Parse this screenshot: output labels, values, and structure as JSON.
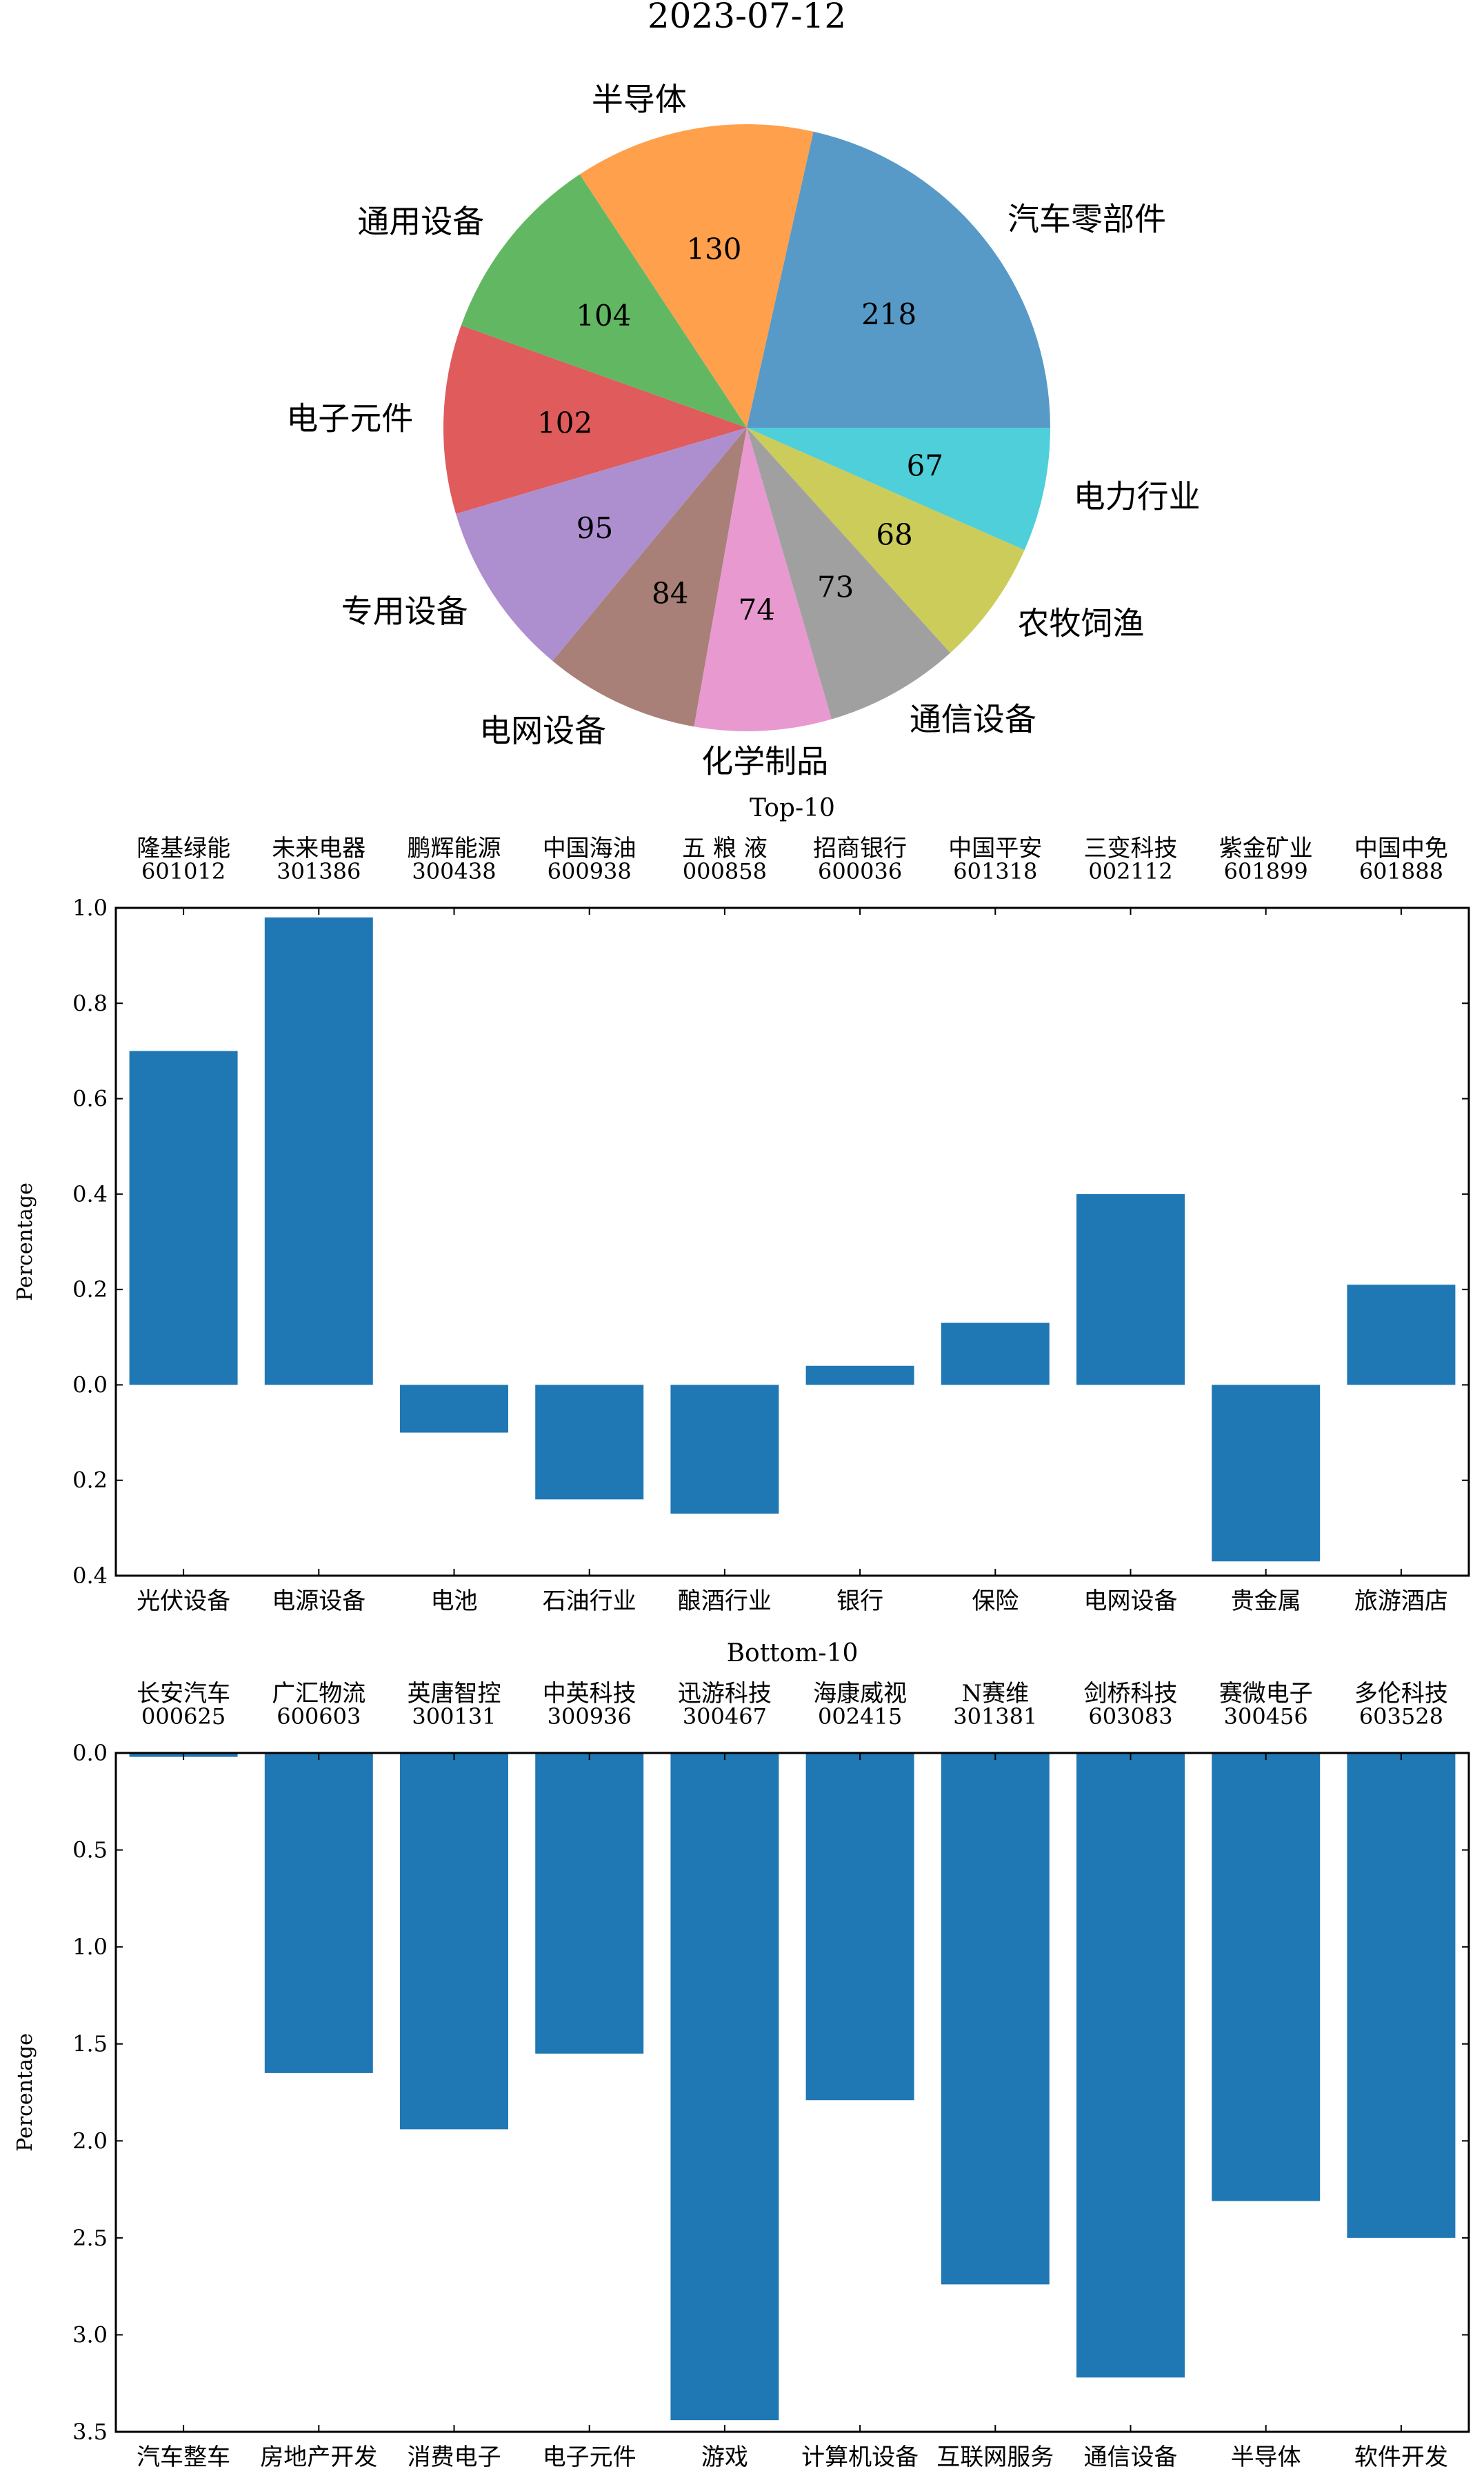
{
  "title": "2023-07-12",
  "chart_data": [
    {
      "type": "pie",
      "title": "2023-07-12",
      "labels": [
        "汽车零部件",
        "半导体",
        "通用设备",
        "电子元件",
        "专用设备",
        "电网设备",
        "化学制品",
        "通信设备",
        "农牧饲渔",
        "电力行业"
      ],
      "values": [
        218,
        130,
        104,
        102,
        95,
        84,
        74,
        73,
        68,
        67
      ],
      "colors": [
        "#5799c7",
        "#ffa04c",
        "#62b862",
        "#df5b5c",
        "#ad8fd0",
        "#a88078",
        "#e899d0",
        "#a0a0a0",
        "#cbcc5a",
        "#4ecfd9"
      ]
    },
    {
      "type": "bar",
      "title": "Top-10",
      "ylabel": "Percentage",
      "categories": [
        "光伏设备",
        "电源设备",
        "电池",
        "石油行业",
        "酿酒行业",
        "银行",
        "保险",
        "电网设备",
        "贵金属",
        "旅游酒店"
      ],
      "top_names": [
        "隆基绿能",
        "未来电器",
        "鹏辉能源",
        "中国海油",
        "五 粮 液",
        "招商银行",
        "中国平安",
        "三变科技",
        "紫金矿业",
        "中国中免"
      ],
      "top_codes": [
        "601012",
        "301386",
        "300438",
        "600938",
        "000858",
        "600036",
        "601318",
        "002112",
        "601899",
        "601888"
      ],
      "values": [
        0.7,
        0.98,
        -0.1,
        -0.24,
        -0.27,
        0.04,
        0.13,
        0.4,
        -0.37,
        0.21
      ],
      "ylim": [
        -0.4,
        1.0
      ],
      "yticks": [
        1.0,
        0.8,
        0.6,
        0.4,
        0.2,
        0.0,
        -0.2,
        -0.4
      ],
      "ytick_labels": [
        "1.0",
        "0.8",
        "0.6",
        "0.4",
        "0.2",
        "0.0",
        "0.2",
        "0.4"
      ],
      "color": "#1f77b4"
    },
    {
      "type": "bar",
      "title": "Bottom-10",
      "ylabel": "Percentage",
      "categories": [
        "汽车整车",
        "房地产开发",
        "消费电子",
        "电子元件",
        "游戏",
        "计算机设备",
        "互联网服务",
        "通信设备",
        "半导体",
        "软件开发"
      ],
      "top_names": [
        "长安汽车",
        "广汇物流",
        "英唐智控",
        "中英科技",
        "迅游科技",
        "海康威视",
        "N赛维",
        "剑桥科技",
        "赛微电子",
        "多伦科技"
      ],
      "top_codes": [
        "000625",
        "600603",
        "300131",
        "300936",
        "300467",
        "002415",
        "301381",
        "603083",
        "300456",
        "603528"
      ],
      "values": [
        -0.02,
        -1.65,
        -1.94,
        -1.55,
        -3.44,
        -1.79,
        -2.74,
        -3.22,
        -2.31,
        -2.5
      ],
      "ylim": [
        -3.5,
        0.0
      ],
      "yticks": [
        0.0,
        -0.5,
        -1.0,
        -1.5,
        -2.0,
        -2.5,
        -3.0,
        -3.5
      ],
      "ytick_labels": [
        "0.0",
        "0.5",
        "1.0",
        "1.5",
        "2.0",
        "2.5",
        "3.0",
        "3.5"
      ],
      "color": "#1f77b4"
    }
  ]
}
